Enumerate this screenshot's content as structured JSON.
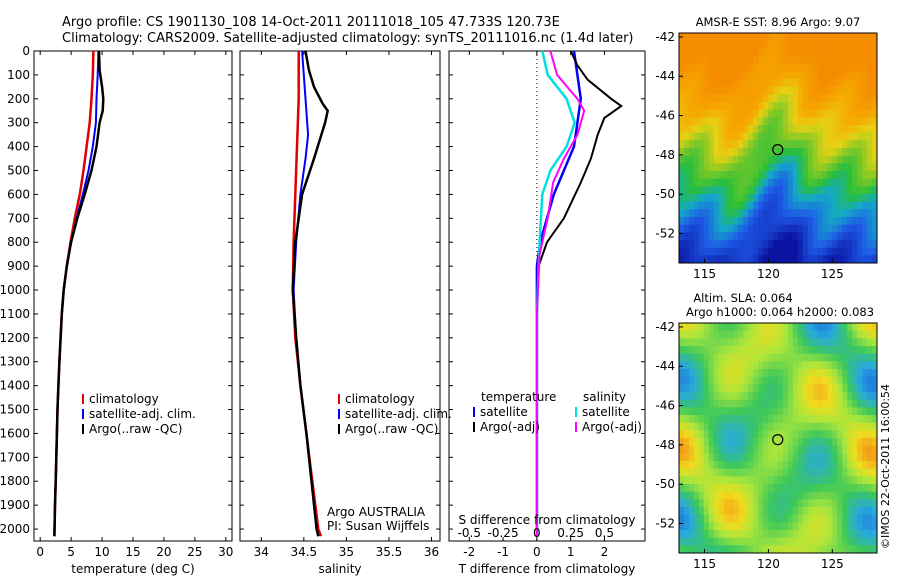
{
  "header": {
    "line1": "Argo profile: CS 1901130_108 14-Oct-2011 20111018_105 47.733S 120.73E",
    "line2": "Climatology: CARS2009. Satellite-adjusted climatology: synTS_20111016.nc (1.4d later)"
  },
  "credit": "©IMOS 22-Oct-2011 16:00:54",
  "colors": {
    "climatology": "#e00000",
    "satellite": "#0000ff",
    "argo": "#000000",
    "sal_satellite": "#00e0e0",
    "sal_argo": "#ff00ff"
  },
  "chart_data": [
    {
      "type": "line",
      "xlabel": "temperature (deg C)",
      "xlim": [
        -1,
        31
      ],
      "ylim": [
        0,
        2050
      ],
      "xticks": [
        0,
        5,
        10,
        15,
        20,
        25,
        30
      ],
      "yticks": [
        0,
        100,
        200,
        300,
        400,
        500,
        600,
        700,
        800,
        900,
        1000,
        1100,
        1200,
        1300,
        1400,
        1500,
        1600,
        1700,
        1800,
        1900,
        2000
      ],
      "legend": [
        "climatology",
        "satellite-adj. clim.",
        "Argo(..raw -QC)"
      ],
      "legend_placement": "lower-center",
      "series": [
        {
          "name": "climatology",
          "color": "#e00000",
          "points": [
            [
              8.6,
              0
            ],
            [
              8.5,
              100
            ],
            [
              8.3,
              200
            ],
            [
              8.0,
              300
            ],
            [
              7.5,
              400
            ],
            [
              7.0,
              500
            ],
            [
              6.4,
              600
            ],
            [
              5.6,
              700
            ],
            [
              4.9,
              800
            ],
            [
              4.3,
              900
            ],
            [
              3.8,
              1000
            ],
            [
              3.5,
              1100
            ],
            [
              3.3,
              1200
            ],
            [
              3.1,
              1300
            ],
            [
              2.95,
              1400
            ],
            [
              2.8,
              1500
            ],
            [
              2.7,
              1600
            ],
            [
              2.6,
              1700
            ],
            [
              2.5,
              1800
            ],
            [
              2.4,
              1900
            ],
            [
              2.3,
              2030
            ]
          ]
        },
        {
          "name": "satellite-adj. clim.",
          "color": "#0000ff",
          "points": [
            [
              9.4,
              0
            ],
            [
              9.3,
              100
            ],
            [
              9.1,
              200
            ],
            [
              9.0,
              300
            ],
            [
              8.5,
              400
            ],
            [
              7.8,
              500
            ],
            [
              6.9,
              600
            ],
            [
              5.9,
              700
            ],
            [
              5.0,
              800
            ],
            [
              4.3,
              900
            ],
            [
              3.8,
              1000
            ],
            [
              3.5,
              1100
            ],
            [
              3.3,
              1200
            ],
            [
              3.1,
              1300
            ],
            [
              2.95,
              1400
            ],
            [
              2.8,
              1500
            ],
            [
              2.7,
              1600
            ],
            [
              2.6,
              1700
            ],
            [
              2.5,
              1800
            ],
            [
              2.4,
              1900
            ],
            [
              2.3,
              2030
            ]
          ]
        },
        {
          "name": "Argo(..raw -QC)",
          "color": "#000000",
          "points": [
            [
              9.5,
              0
            ],
            [
              9.6,
              80
            ],
            [
              10.0,
              150
            ],
            [
              10.2,
              200
            ],
            [
              10.1,
              250
            ],
            [
              9.6,
              300
            ],
            [
              9.1,
              400
            ],
            [
              8.3,
              500
            ],
            [
              7.2,
              600
            ],
            [
              6.0,
              700
            ],
            [
              5.0,
              800
            ],
            [
              4.3,
              900
            ],
            [
              3.8,
              1000
            ],
            [
              3.5,
              1100
            ],
            [
              3.3,
              1200
            ],
            [
              3.1,
              1300
            ],
            [
              2.95,
              1400
            ],
            [
              2.8,
              1500
            ],
            [
              2.7,
              1600
            ],
            [
              2.6,
              1700
            ],
            [
              2.5,
              1800
            ],
            [
              2.4,
              1900
            ],
            [
              2.3,
              2030
            ]
          ]
        }
      ]
    },
    {
      "type": "line",
      "xlabel": "salinity",
      "xlim": [
        33.75,
        36.1
      ],
      "ylim": [
        0,
        2050
      ],
      "xticks": [
        34,
        34.5,
        35,
        35.5,
        36
      ],
      "legend": [
        "climatology",
        "satellite-adj. clim.",
        "Argo(..raw -QC)"
      ],
      "legend_placement": "lower-right",
      "annotation": [
        "Argo AUSTRALIA",
        "PI: Susan Wijffels"
      ],
      "series": [
        {
          "name": "climatology",
          "color": "#e00000",
          "points": [
            [
              34.44,
              0
            ],
            [
              34.44,
              200
            ],
            [
              34.42,
              400
            ],
            [
              34.4,
              600
            ],
            [
              34.38,
              800
            ],
            [
              34.37,
              1000
            ],
            [
              34.4,
              1200
            ],
            [
              34.46,
              1400
            ],
            [
              34.53,
              1600
            ],
            [
              34.6,
              1800
            ],
            [
              34.67,
              2000
            ],
            [
              34.7,
              2030
            ]
          ]
        },
        {
          "name": "satellite-adj. clim.",
          "color": "#0000ff",
          "points": [
            [
              34.48,
              0
            ],
            [
              34.5,
              100
            ],
            [
              34.52,
              200
            ],
            [
              34.54,
              300
            ],
            [
              34.55,
              350
            ],
            [
              34.52,
              450
            ],
            [
              34.46,
              600
            ],
            [
              34.41,
              800
            ],
            [
              34.38,
              1000
            ],
            [
              34.41,
              1200
            ],
            [
              34.46,
              1400
            ],
            [
              34.53,
              1600
            ],
            [
              34.59,
              1800
            ],
            [
              34.65,
              2000
            ],
            [
              34.67,
              2030
            ]
          ]
        },
        {
          "name": "Argo(..raw -QC)",
          "color": "#000000",
          "points": [
            [
              34.52,
              0
            ],
            [
              34.56,
              80
            ],
            [
              34.62,
              150
            ],
            [
              34.72,
              220
            ],
            [
              34.78,
              250
            ],
            [
              34.75,
              300
            ],
            [
              34.62,
              450
            ],
            [
              34.48,
              600
            ],
            [
              34.4,
              800
            ],
            [
              34.37,
              1000
            ],
            [
              34.41,
              1200
            ],
            [
              34.46,
              1400
            ],
            [
              34.53,
              1600
            ],
            [
              34.59,
              1800
            ],
            [
              34.65,
              2000
            ],
            [
              34.67,
              2030
            ]
          ]
        }
      ]
    },
    {
      "type": "line",
      "xlabel": "T difference from climatology",
      "xlabel_top": "S difference from climatology",
      "xlim": [
        -2.6,
        3.2
      ],
      "ylim": [
        0,
        2050
      ],
      "xticks": [
        -2,
        -1,
        0,
        1,
        2
      ],
      "xticks_top": [
        -0.5,
        -0.25,
        0,
        0.25,
        0.5
      ],
      "legend": {
        "title_left": "temperature",
        "title_right": "salinity",
        "left": [
          "satellite",
          "Argo(-adj)"
        ],
        "right": [
          "satellite",
          "Argo(-adj)"
        ]
      },
      "legend_placement": "lower-center",
      "series": [
        {
          "name": "temperature satellite",
          "color": "#0000ff",
          "points": [
            [
              1.1,
              0
            ],
            [
              1.2,
              100
            ],
            [
              1.3,
              200
            ],
            [
              1.2,
              300
            ],
            [
              1.1,
              400
            ],
            [
              0.8,
              500
            ],
            [
              0.5,
              600
            ],
            [
              0.3,
              700
            ],
            [
              0.1,
              800
            ],
            [
              0.0,
              900
            ],
            [
              0.0,
              1100
            ],
            [
              0.0,
              2030
            ]
          ]
        },
        {
          "name": "temperature Argo(-adj)",
          "color": "#000000",
          "points": [
            [
              1.0,
              0
            ],
            [
              1.2,
              60
            ],
            [
              1.5,
              120
            ],
            [
              2.2,
              200
            ],
            [
              2.5,
              230
            ],
            [
              2.0,
              280
            ],
            [
              1.8,
              350
            ],
            [
              1.6,
              450
            ],
            [
              1.3,
              550
            ],
            [
              0.8,
              700
            ],
            [
              0.3,
              800
            ],
            [
              0.05,
              900
            ],
            [
              0.0,
              1100
            ],
            [
              0.0,
              2030
            ]
          ]
        },
        {
          "name": "salinity satellite",
          "color": "#00e0e0",
          "points": [
            [
              0.04,
              0
            ],
            [
              0.08,
              100
            ],
            [
              0.22,
              200
            ],
            [
              0.28,
              300
            ],
            [
              0.22,
              400
            ],
            [
              0.1,
              500
            ],
            [
              0.04,
              600
            ],
            [
              0.02,
              800
            ],
            [
              0.0,
              1100
            ],
            [
              0.0,
              2030
            ]
          ]
        },
        {
          "name": "salinity Argo(-adj)",
          "color": "#ff00ff",
          "points": [
            [
              0.1,
              0
            ],
            [
              0.15,
              100
            ],
            [
              0.3,
              200
            ],
            [
              0.35,
              250
            ],
            [
              0.3,
              350
            ],
            [
              0.2,
              450
            ],
            [
              0.12,
              550
            ],
            [
              0.08,
              700
            ],
            [
              0.02,
              850
            ],
            [
              0.0,
              1100
            ],
            [
              0.0,
              2030
            ]
          ]
        }
      ]
    },
    {
      "type": "heatmap",
      "title": "AMSR-E SST: 8.96  Argo: 9.07",
      "xlim": [
        113,
        128.5
      ],
      "ylim": [
        -53.5,
        -41.8
      ],
      "xticks": [
        115,
        120,
        125
      ],
      "yticks": [
        -42,
        -44,
        -46,
        -48,
        -50,
        -52
      ],
      "marker": {
        "lon": 120.73,
        "lat": -47.733
      }
    },
    {
      "type": "heatmap",
      "title": "Altim. SLA: 0.064",
      "subtitle": "Argo h1000: 0.064  h2000: 0.083",
      "xlim": [
        113,
        128.5
      ],
      "ylim": [
        -53.5,
        -41.8
      ],
      "xticks": [
        115,
        120,
        125
      ],
      "yticks": [
        -42,
        -44,
        -46,
        -48,
        -50,
        -52
      ],
      "marker": {
        "lon": 120.73,
        "lat": -47.733
      }
    }
  ]
}
